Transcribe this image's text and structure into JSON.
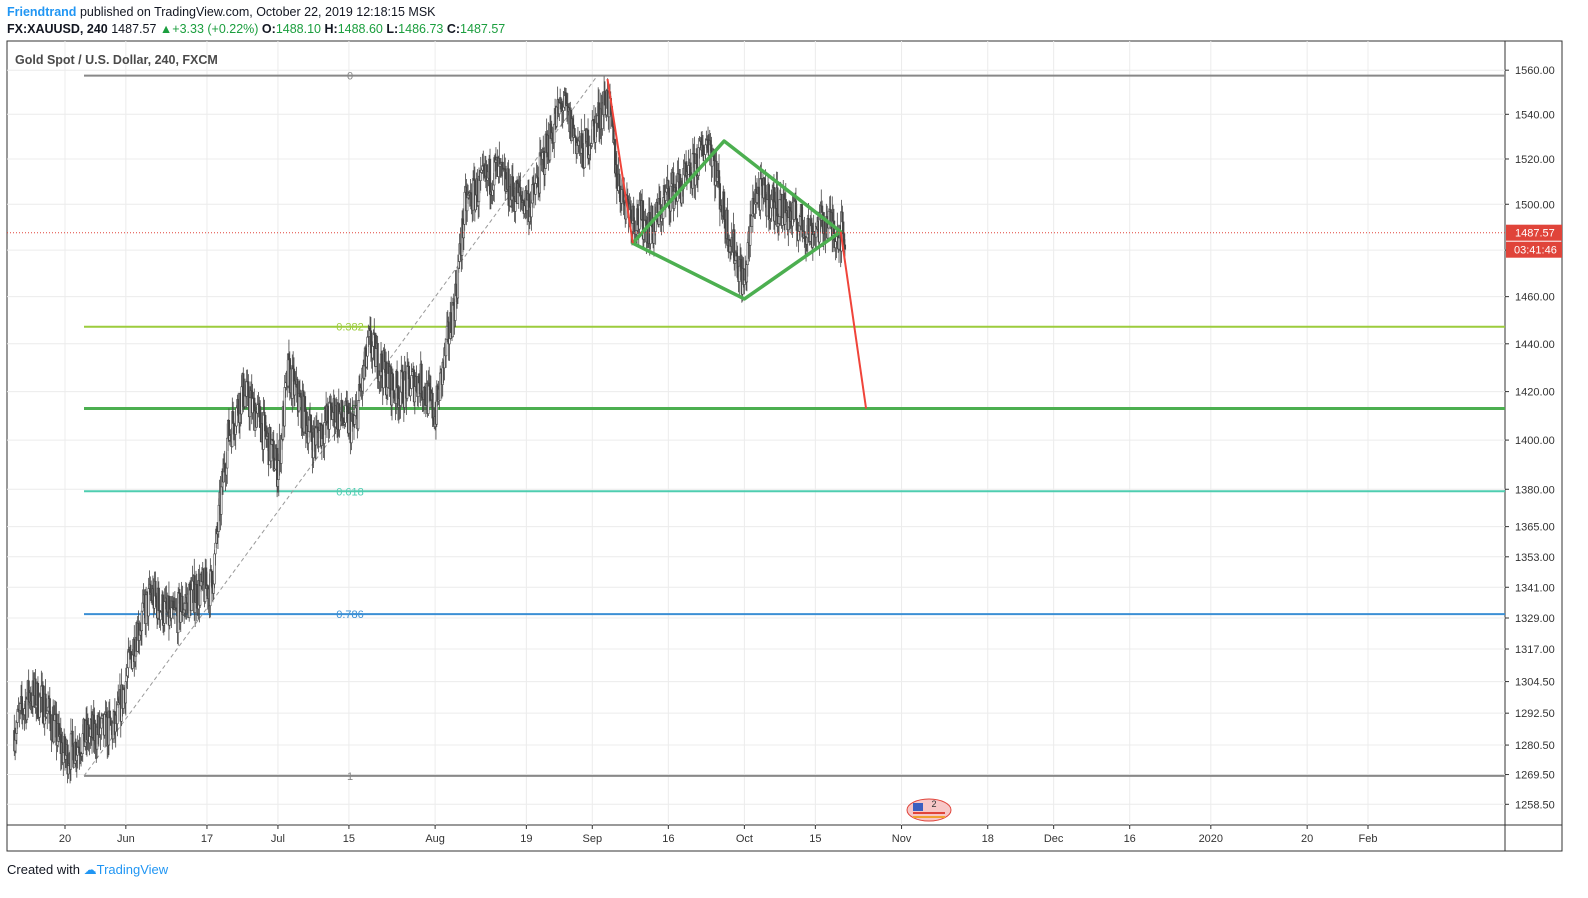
{
  "header": {
    "author": "Friendtrand",
    "published_text": "published on TradingView.com, October 22, 2019 12:18:15 MSK",
    "symbol": "FX:XAUUSD, 240",
    "last": "1487.57",
    "change": "+3.33 (+0.22%)",
    "o_label": "O:",
    "o_value": "1488.10",
    "h_label": "H:",
    "h_value": "1488.60",
    "l_label": "L:",
    "l_value": "1486.73",
    "c_label": "C:",
    "c_value": "1487.57"
  },
  "legend": {
    "title": "Gold Spot / U.S. Dollar, 240, FXCM"
  },
  "footer": {
    "created_with": "Created with",
    "brand": "TradingView"
  },
  "colors": {
    "up_arrow": "#1b9e3e",
    "price_line": "#e0443a",
    "fib_0": "#888888",
    "fib_0382": "#9ccc3d",
    "fib_05": "#4caf50",
    "fib_0618": "#4ecdb0",
    "fib_0786": "#3b8fd4",
    "fib_1": "#888888",
    "pattern": "#4caf50",
    "projection": "#f0443a"
  },
  "chart_data": {
    "type": "candlestick",
    "y_scale": "log",
    "ylim": [
      1252,
      1572
    ],
    "y_ticks": [
      1560.0,
      1540.0,
      1520.0,
      1500.0,
      1480.0,
      1460.0,
      1440.0,
      1420.0,
      1400.0,
      1380.0,
      1365.0,
      1353.0,
      1341.0,
      1329.0,
      1317.0,
      1304.5,
      1292.5,
      1280.5,
      1269.5,
      1258.5
    ],
    "x_ticks": [
      {
        "label": "20",
        "date": "2019-05-20"
      },
      {
        "label": "Jun",
        "date": "2019-06-01"
      },
      {
        "label": "17",
        "date": "2019-06-17"
      },
      {
        "label": "Jul",
        "date": "2019-07-01"
      },
      {
        "label": "15",
        "date": "2019-07-15"
      },
      {
        "label": "Aug",
        "date": "2019-08-01"
      },
      {
        "label": "19",
        "date": "2019-08-19"
      },
      {
        "label": "Sep",
        "date": "2019-09-01"
      },
      {
        "label": "16",
        "date": "2019-09-16"
      },
      {
        "label": "Oct",
        "date": "2019-10-01"
      },
      {
        "label": "15",
        "date": "2019-10-15"
      },
      {
        "label": "Nov",
        "date": "2019-11-01"
      },
      {
        "label": "18",
        "date": "2019-11-18"
      },
      {
        "label": "Dec",
        "date": "2019-12-01"
      },
      {
        "label": "16",
        "date": "2019-12-16"
      },
      {
        "label": "2020",
        "date": "2020-01-01"
      },
      {
        "label": "20",
        "date": "2020-01-20"
      },
      {
        "label": "Feb",
        "date": "2020-02-01"
      }
    ],
    "last_price": {
      "value": 1487.57,
      "label": "1487.57",
      "countdown": "03:41:46"
    },
    "fib_levels": [
      {
        "label": "0",
        "value": 1557.5
      },
      {
        "label": "0.382",
        "value": 1447.2
      },
      {
        "label": "0.5",
        "value": 1413.0
      },
      {
        "label": "0.618",
        "value": 1379.2
      },
      {
        "label": "0.786",
        "value": 1330.5
      },
      {
        "label": "1",
        "value": 1269.0
      }
    ],
    "diamond": [
      {
        "date": "2019-09-09",
        "value": 1483
      },
      {
        "date": "2019-09-27",
        "value": 1528
      },
      {
        "date": "2019-10-20",
        "value": 1488
      },
      {
        "date": "2019-10-01",
        "value": 1459
      }
    ],
    "projection": [
      {
        "date": "2019-10-20",
        "value": 1488
      },
      {
        "date": "2019-10-25",
        "value": 1413
      }
    ],
    "decline_line": [
      {
        "date": "2019-09-04",
        "value": 1556
      },
      {
        "date": "2019-09-09",
        "value": 1483
      }
    ],
    "price_path": [
      {
        "date": "2019-05-10",
        "value": 1286
      },
      {
        "date": "2019-05-13",
        "value": 1300
      },
      {
        "date": "2019-05-16",
        "value": 1296
      },
      {
        "date": "2019-05-20",
        "value": 1276
      },
      {
        "date": "2019-05-23",
        "value": 1282
      },
      {
        "date": "2019-05-26",
        "value": 1285
      },
      {
        "date": "2019-05-30",
        "value": 1287
      },
      {
        "date": "2019-06-03",
        "value": 1323
      },
      {
        "date": "2019-06-06",
        "value": 1338
      },
      {
        "date": "2019-06-10",
        "value": 1328
      },
      {
        "date": "2019-06-14",
        "value": 1338
      },
      {
        "date": "2019-06-18",
        "value": 1342
      },
      {
        "date": "2019-06-21",
        "value": 1400
      },
      {
        "date": "2019-06-24",
        "value": 1420
      },
      {
        "date": "2019-06-27",
        "value": 1410
      },
      {
        "date": "2019-07-01",
        "value": 1388
      },
      {
        "date": "2019-07-03",
        "value": 1428
      },
      {
        "date": "2019-07-08",
        "value": 1400
      },
      {
        "date": "2019-07-12",
        "value": 1412
      },
      {
        "date": "2019-07-16",
        "value": 1405
      },
      {
        "date": "2019-07-19",
        "value": 1440
      },
      {
        "date": "2019-07-24",
        "value": 1420
      },
      {
        "date": "2019-07-29",
        "value": 1425
      },
      {
        "date": "2019-08-01",
        "value": 1410
      },
      {
        "date": "2019-08-05",
        "value": 1460
      },
      {
        "date": "2019-08-07",
        "value": 1500
      },
      {
        "date": "2019-08-13",
        "value": 1515
      },
      {
        "date": "2019-08-16",
        "value": 1505
      },
      {
        "date": "2019-08-20",
        "value": 1500
      },
      {
        "date": "2019-08-23",
        "value": 1525
      },
      {
        "date": "2019-08-26",
        "value": 1545
      },
      {
        "date": "2019-08-30",
        "value": 1522
      },
      {
        "date": "2019-09-04",
        "value": 1548
      },
      {
        "date": "2019-09-06",
        "value": 1510
      },
      {
        "date": "2019-09-09",
        "value": 1495
      },
      {
        "date": "2019-09-13",
        "value": 1490
      },
      {
        "date": "2019-09-16",
        "value": 1505
      },
      {
        "date": "2019-09-20",
        "value": 1510
      },
      {
        "date": "2019-09-24",
        "value": 1530
      },
      {
        "date": "2019-09-27",
        "value": 1495
      },
      {
        "date": "2019-10-01",
        "value": 1465
      },
      {
        "date": "2019-10-03",
        "value": 1505
      },
      {
        "date": "2019-10-07",
        "value": 1500
      },
      {
        "date": "2019-10-10",
        "value": 1495
      },
      {
        "date": "2019-10-14",
        "value": 1488
      },
      {
        "date": "2019-10-17",
        "value": 1492
      },
      {
        "date": "2019-10-21",
        "value": 1487
      }
    ],
    "title": "Gold Spot / U.S. Dollar, 240, FXCM",
    "grid": true
  }
}
